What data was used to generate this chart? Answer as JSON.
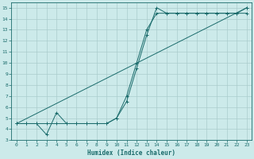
{
  "bg_color": "#cceaea",
  "grid_color": "#aacccc",
  "line_color": "#1a6b6b",
  "xlabel": "Humidex (Indice chaleur)",
  "xlim": [
    -0.5,
    23.5
  ],
  "ylim": [
    3,
    15.5
  ],
  "xticks": [
    0,
    1,
    2,
    3,
    4,
    5,
    6,
    7,
    8,
    9,
    10,
    11,
    12,
    13,
    14,
    15,
    16,
    17,
    18,
    19,
    20,
    21,
    22,
    23
  ],
  "yticks": [
    3,
    4,
    5,
    6,
    7,
    8,
    9,
    10,
    11,
    12,
    13,
    14,
    15
  ],
  "line1_x": [
    0,
    1,
    2,
    3,
    4,
    5,
    6,
    7,
    8,
    9,
    10,
    11,
    12,
    13,
    14,
    15,
    16,
    17,
    18,
    19,
    20,
    21,
    22,
    23
  ],
  "line1_y": [
    4.5,
    4.5,
    4.5,
    3.5,
    5.5,
    4.5,
    4.5,
    4.5,
    4.5,
    4.5,
    5.0,
    6.5,
    9.5,
    12.5,
    15.0,
    14.5,
    14.5,
    14.5,
    14.5,
    14.5,
    14.5,
    14.5,
    14.5,
    15.0
  ],
  "line2_x": [
    0,
    1,
    2,
    3,
    4,
    5,
    6,
    7,
    8,
    9,
    10,
    11,
    12,
    13,
    14,
    15,
    16,
    17,
    18,
    19,
    20,
    21,
    22,
    23
  ],
  "line2_y": [
    4.5,
    4.5,
    4.5,
    4.5,
    4.5,
    4.5,
    4.5,
    4.5,
    4.5,
    4.5,
    5.0,
    7.0,
    10.0,
    13.0,
    14.5,
    14.5,
    14.5,
    14.5,
    14.5,
    14.5,
    14.5,
    14.5,
    14.5,
    14.5
  ],
  "line3_x": [
    0,
    23
  ],
  "line3_y": [
    4.5,
    15.0
  ]
}
